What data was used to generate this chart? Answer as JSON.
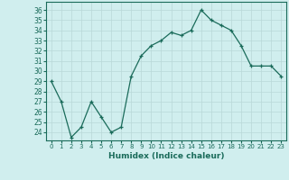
{
  "x": [
    0,
    1,
    2,
    3,
    4,
    5,
    6,
    7,
    8,
    9,
    10,
    11,
    12,
    13,
    14,
    15,
    16,
    17,
    18,
    19,
    20,
    21,
    22,
    23
  ],
  "y": [
    29,
    27,
    23.5,
    24.5,
    27,
    25.5,
    24,
    24.5,
    29.5,
    31.5,
    32.5,
    33,
    33.8,
    33.5,
    34,
    36,
    35,
    34.5,
    34,
    32.5,
    30.5,
    30.5,
    30.5,
    29.5
  ],
  "line_color": "#1a6b5a",
  "marker": "+",
  "bg_color": "#d0eeee",
  "grid_color": "#b8d8d8",
  "xlabel": "Humidex (Indice chaleur)",
  "yticks": [
    24,
    25,
    26,
    27,
    28,
    29,
    30,
    31,
    32,
    33,
    34,
    35,
    36
  ],
  "ylim": [
    23.2,
    36.8
  ],
  "xlim": [
    -0.5,
    23.5
  ]
}
